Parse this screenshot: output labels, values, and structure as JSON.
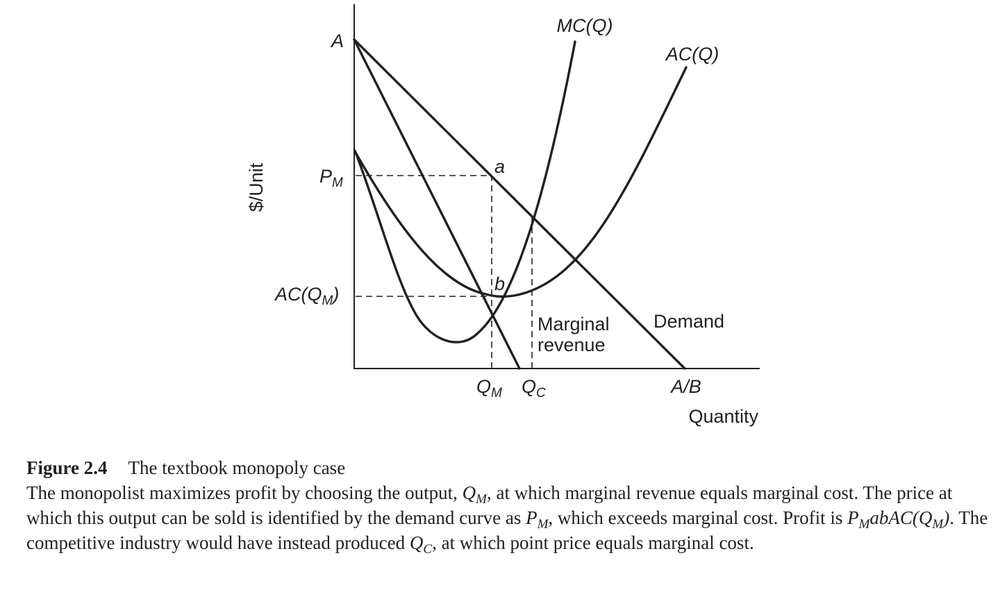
{
  "diagram": {
    "y_axis_label": "$/Unit",
    "x_axis_label": "Quantity",
    "y_ticks": {
      "A": "A",
      "PM_main": "P",
      "PM_sub": "M",
      "ACQM_main": "AC(Q",
      "ACQM_sub": "M",
      "ACQM_close": ")"
    },
    "x_ticks": {
      "QM_main": "Q",
      "QM_sub": "M",
      "QC_main": "Q",
      "QC_sub": "C",
      "AB": "A/B"
    },
    "curve_labels": {
      "mc": "MC(Q)",
      "ac": "AC(Q)",
      "demand": "Demand",
      "mr_line1": "Marginal",
      "mr_line2": "revenue"
    },
    "point_labels": {
      "a": "a",
      "b": "b"
    }
  },
  "caption": {
    "figure_number": "Figure 2.4",
    "figure_title": "The textbook monopoly case",
    "s1": "The monopolist maximizes profit by choosing the output, ",
    "QM_main": "Q",
    "QM_sub": "M",
    "s2": ", at which marginal revenue equals marginal cost. The price at which this output can be sold is identified by the demand curve as ",
    "PM_main": "P",
    "PM_sub": "M",
    "s3": ", which exceeds marginal cost. Profit is ",
    "profit_P": "P",
    "profit_Psub": "M",
    "profit_ab": "abAC(Q",
    "profit_Qsub": "M",
    "profit_close": ")",
    "s4": ". The competitive industry would have instead produced ",
    "QC_main": "Q",
    "QC_sub": "C",
    "s5": ", at which point price equals marginal cost."
  }
}
